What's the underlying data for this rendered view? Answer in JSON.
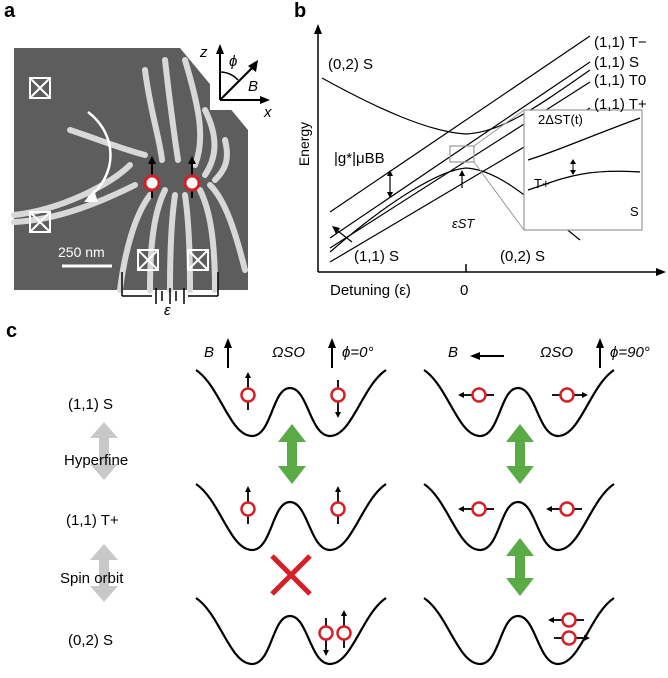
{
  "panels": {
    "a": "a",
    "b": "b",
    "c": "c"
  },
  "panel_a": {
    "scale_bar": "250 nm",
    "axes": {
      "z": "z",
      "x": "x",
      "phi": "ϕ",
      "B": "B"
    },
    "bias_label": "ε"
  },
  "panel_b": {
    "ylabel": "Energy",
    "xlabel": "Detuning (ε)",
    "x_zero": "0",
    "labels": {
      "s02_top": "(0,2) S",
      "t_minus": "(1,1) T−",
      "s11_top": "(1,1) S",
      "t0": "(1,1) T0",
      "t_plus": "(1,1) T+",
      "zeeman": "|g*|μBB",
      "s11_bottom": "(1,1) S",
      "s02_bottom": "(0,2) S",
      "eps_st": "εST"
    },
    "inset": {
      "gap": "2ΔST(t)",
      "tplus": "T+",
      "s": "S"
    }
  },
  "panel_c": {
    "left_header": {
      "B": "B",
      "omega": "ΩSO",
      "phi": "ϕ=0°"
    },
    "right_header": {
      "B": "B",
      "omega": "ΩSO",
      "phi": "ϕ=90°"
    },
    "rows": [
      "(1,1) S",
      "(1,1) T+",
      "(0,2) S"
    ],
    "couplings": [
      "Hyperfine",
      "Spin orbit"
    ]
  },
  "colors": {
    "green": "#5aaa46",
    "red": "#d62027",
    "grey": "#c8c8c8",
    "sem_bg": "#5d5d5d"
  }
}
